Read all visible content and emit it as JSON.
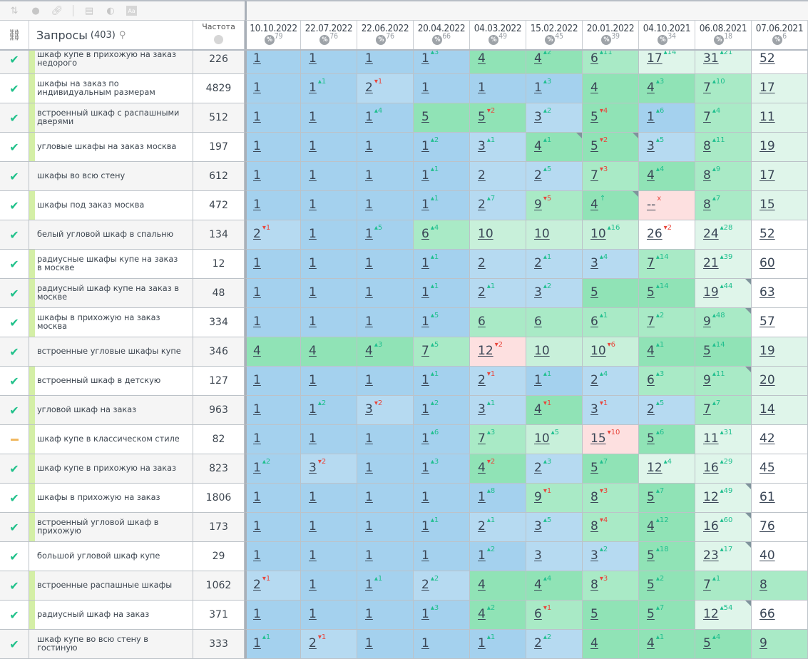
{
  "toolbar": {
    "icons": [
      "sort-icon",
      "toggle-icon",
      "link-icon",
      "table-icon",
      "contrast-icon",
      "font-icon"
    ]
  },
  "header": {
    "link_col_icon": "link-icon",
    "query_title": "Запросы",
    "query_count": "(403)",
    "frequency_title": "Частота",
    "dates": [
      {
        "date": "10.10.2022",
        "pct": "79"
      },
      {
        "date": "22.07.2022",
        "pct": "76"
      },
      {
        "date": "22.06.2022",
        "pct": "76"
      },
      {
        "date": "20.04.2022",
        "pct": "66"
      },
      {
        "date": "04.03.2022",
        "pct": "49"
      },
      {
        "date": "15.02.2022",
        "pct": "45"
      },
      {
        "date": "20.01.2022",
        "pct": "39"
      },
      {
        "date": "04.10.2021",
        "pct": "34"
      },
      {
        "date": "06.08.2021",
        "pct": "18"
      },
      {
        "date": "07.06.2021",
        "pct": "6"
      }
    ]
  },
  "colors": {
    "top1": "#a4d1ee",
    "top3": "#b6daf1",
    "top5": "#90e3b6",
    "top10": "#a9eac6",
    "top10b": "#c8f0da",
    "top30": "#dff5ea",
    "drop": "#fde0e0",
    "up": "#1fbf8e",
    "down": "#e8463c"
  },
  "rows": [
    {
      "status": "ok",
      "bar": true,
      "q": "шкаф купе в прихожую на заказ недорого",
      "f": "226",
      "cells": [
        "1",
        "1",
        "1",
        "1|+3",
        "4",
        "4|+2",
        "6|+11",
        "17|+14",
        "31|+21",
        "52"
      ]
    },
    {
      "status": "ok",
      "bar": true,
      "q": "шкафы на заказ по индивидуальным размерам",
      "f": "4829",
      "cells": [
        "1",
        "1|+1",
        "2|-1",
        "1",
        "1",
        "1|+3",
        "4",
        "4|+3",
        "7|+10",
        "17"
      ]
    },
    {
      "status": "ok",
      "bar": true,
      "q": "встроенный шкаф с распашными дверями",
      "f": "512",
      "cells": [
        "1",
        "1",
        "1|+4",
        "5",
        "5|-2",
        "3|+2",
        "5|-4",
        "1|+6",
        "7|+4",
        "11"
      ]
    },
    {
      "status": "ok",
      "bar": true,
      "q": "угловые шкафы на заказ москва",
      "f": "197",
      "cells": [
        "1",
        "1",
        "1",
        "1|+2",
        "3|+1",
        "4|+1|c",
        "5|-2|c",
        "3|+5",
        "8|+11",
        "19"
      ]
    },
    {
      "status": "ok",
      "bar": false,
      "q": "шкафы во всю стену",
      "f": "612",
      "cells": [
        "1",
        "1",
        "1",
        "1|+1",
        "2",
        "2|+5",
        "7|-3",
        "4|+4",
        "8|+9",
        "17"
      ]
    },
    {
      "status": "ok",
      "bar": true,
      "q": "шкафы под заказ москва",
      "f": "472",
      "cells": [
        "1",
        "1",
        "1",
        "1|+1",
        "2|+7",
        "9|-5",
        "4|↑|c",
        "--|x|p",
        "8|+7",
        "15"
      ]
    },
    {
      "status": "ok",
      "bar": false,
      "q": "белый угловой шкаф в спальню",
      "f": "134",
      "cells": [
        "2|-1",
        "1",
        "1|+5",
        "6|+4",
        "10",
        "10",
        "10|+16",
        "26|-2|w",
        "24|+28",
        "52"
      ]
    },
    {
      "status": "ok",
      "bar": true,
      "q": "радиусные шкафы купе на заказ в москве",
      "f": "12",
      "cells": [
        "1",
        "1",
        "1",
        "1|+1",
        "2",
        "2|+1",
        "3|+4",
        "7|+14",
        "21|+39",
        "60"
      ]
    },
    {
      "status": "ok",
      "bar": true,
      "q": "радиусный шкаф купе на заказ в москве",
      "f": "48",
      "cells": [
        "1",
        "1",
        "1",
        "1|+1",
        "2|+1",
        "3|+2",
        "5",
        "5|+14",
        "19|+44|c",
        "63"
      ]
    },
    {
      "status": "ok",
      "bar": true,
      "q": "шкафы в прихожую на заказ москва",
      "f": "334",
      "cells": [
        "1",
        "1",
        "1",
        "1|+5",
        "6",
        "6",
        "6|+1",
        "7|+2",
        "9|+48|c",
        "57"
      ]
    },
    {
      "status": "ok",
      "bar": false,
      "q": "встроенные угловые шкафы купе",
      "f": "346",
      "cells": [
        "4",
        "4",
        "4|+3",
        "7|+5",
        "12|-2|p",
        "10",
        "10|-6",
        "4|+1",
        "5|+14",
        "19"
      ]
    },
    {
      "status": "ok",
      "bar": true,
      "q": "встроенный шкаф в детскую",
      "f": "127",
      "cells": [
        "1",
        "1",
        "1",
        "1|+1",
        "2|-1",
        "1|+1",
        "2|+4",
        "6|+3",
        "9|+11|c",
        "20"
      ]
    },
    {
      "status": "ok",
      "bar": true,
      "q": "угловой шкаф на заказ",
      "f": "963",
      "cells": [
        "1",
        "1|+2",
        "3|-2",
        "1|+2",
        "3|+1",
        "4|-1",
        "3|-1",
        "2|+5",
        "7|+7",
        "14"
      ]
    },
    {
      "status": "warn",
      "bar": true,
      "q": "шкаф купе в классическом стиле",
      "f": "82",
      "cells": [
        "1",
        "1",
        "1",
        "1|+6",
        "7|+3",
        "10|+5",
        "15|-10|p",
        "5|+6",
        "11|+31",
        "42"
      ]
    },
    {
      "status": "ok",
      "bar": true,
      "q": "шкаф купе в прихожую на заказ",
      "f": "823",
      "cells": [
        "1|+2",
        "3|-2",
        "1",
        "1|+3",
        "4|-2",
        "2|+3",
        "5|+7",
        "12|+4",
        "16|+29",
        "45"
      ]
    },
    {
      "status": "ok",
      "bar": true,
      "q": "шкафы в прихожую на заказ",
      "f": "1806",
      "cells": [
        "1",
        "1",
        "1",
        "1",
        "1|+8",
        "9|-1",
        "8|-3",
        "5|+7",
        "12|+49|c",
        "61"
      ]
    },
    {
      "status": "ok",
      "bar": true,
      "q": "встроенный угловой шкаф в прихожую",
      "f": "173",
      "cells": [
        "1",
        "1",
        "1",
        "1|+1",
        "2|+1",
        "3|+5",
        "8|-4",
        "4|+12",
        "16|+60|c",
        "76"
      ]
    },
    {
      "status": "ok",
      "bar": false,
      "q": "большой угловой шкаф купе",
      "f": "29",
      "cells": [
        "1",
        "1",
        "1",
        "1",
        "1|+2",
        "3",
        "3|+2",
        "5|+18",
        "23|+17|c",
        "40"
      ]
    },
    {
      "status": "ok",
      "bar": true,
      "q": "встроенные распашные шкафы",
      "f": "1062",
      "cells": [
        "2|-1",
        "1",
        "1|+1",
        "2|+2",
        "4",
        "4|+4",
        "8|-3",
        "5|+2",
        "7|+1",
        "8"
      ]
    },
    {
      "status": "ok",
      "bar": true,
      "q": "радиусный шкаф на заказ",
      "f": "371",
      "cells": [
        "1",
        "1",
        "1",
        "1|+3",
        "4|+2",
        "6|-1",
        "5",
        "5|+7",
        "12|+54|c",
        "66"
      ]
    },
    {
      "status": "ok",
      "bar": false,
      "q": "шкаф купе во всю стену в гостиную",
      "f": "333",
      "cells": [
        "1|+1",
        "2|-1",
        "1",
        "1",
        "1|+1",
        "2|+2",
        "4",
        "4|+1",
        "5|+4",
        "9"
      ]
    }
  ]
}
